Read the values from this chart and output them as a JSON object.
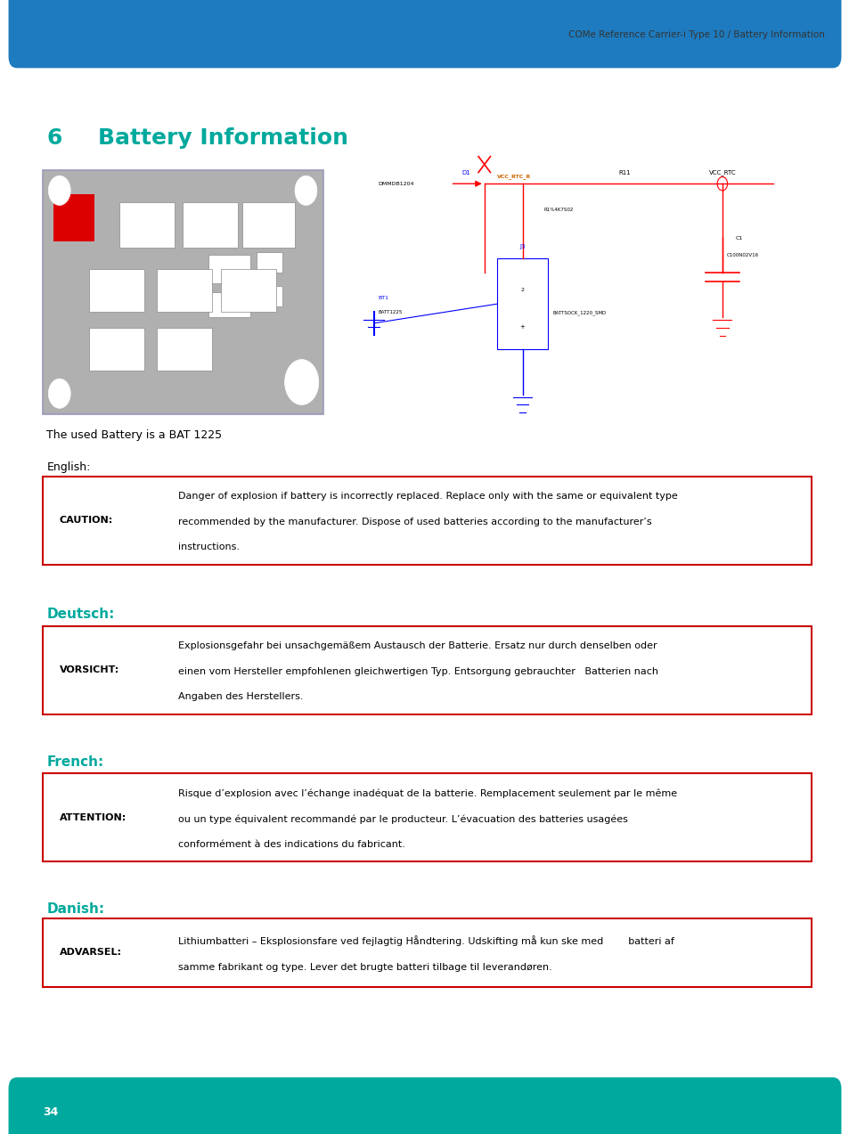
{
  "header_text": "COMe Reference Carrier-i Type 10 / Battery Information",
  "header_bar_color": "#1e7bbf",
  "header_bar_height": 0.055,
  "footer_bar_color": "#00a99d",
  "footer_bar_height": 0.045,
  "footer_page_number": "34",
  "section_number": "6",
  "section_title": "Battery Information",
  "section_title_color": "#00a99d",
  "body_bg": "#ffffff",
  "battery_text": "The used Battery is a BAT 1225",
  "english_label": "English:",
  "deutsch_label": "Deutsch:",
  "french_label": "French:",
  "danish_label": "Danish:",
  "lang_label_color": "#00a99d",
  "caution_label": "CAUTION:",
  "caution_text_line1": "Danger of explosion if battery is incorrectly replaced. Replace only with the same or equivalent type",
  "caution_text_line2": "recommended by the manufacturer. Dispose of used batteries according to the manufacturer’s",
  "caution_text_line3": "instructions.",
  "vorsicht_label": "VORSICHT:",
  "vorsicht_text_line1": "Explosionsgefahr bei unsachgemäßem Austausch der Batterie. Ersatz nur durch denselben oder",
  "vorsicht_text_line2": "einen vom Hersteller empfohlenen gleichwertigen Typ. Entsorgung gebrauchter   Batterien nach",
  "vorsicht_text_line3": "Angaben des Herstellers.",
  "attention_label": "ATTENTION:",
  "attention_text_line1": "Risque d’explosion avec l’échange inadéquat de la batterie. Remplacement seulement par le même",
  "attention_text_line2": "ou un type équivalent recommandé par le producteur. L’évacuation des batteries usagées",
  "attention_text_line3": "conformément à des indications du fabricant.",
  "advarsel_label": "ADVARSEL:",
  "advarsel_text_line1": "Lithiumbatteri – Eksplosionsfare ved fejlagtig Håndtering. Udskifting må kun ske med        batteri af",
  "advarsel_text_line2": "samme fabrikant og type. Lever det brugte batteri tilbage til leverandøren.",
  "box_border_color": "#cc0000",
  "box_bg_color": "#ffffff",
  "text_color": "#000000",
  "gray_board_color": "#b0b0b0",
  "page_width": 9.54,
  "page_height": 12.73
}
